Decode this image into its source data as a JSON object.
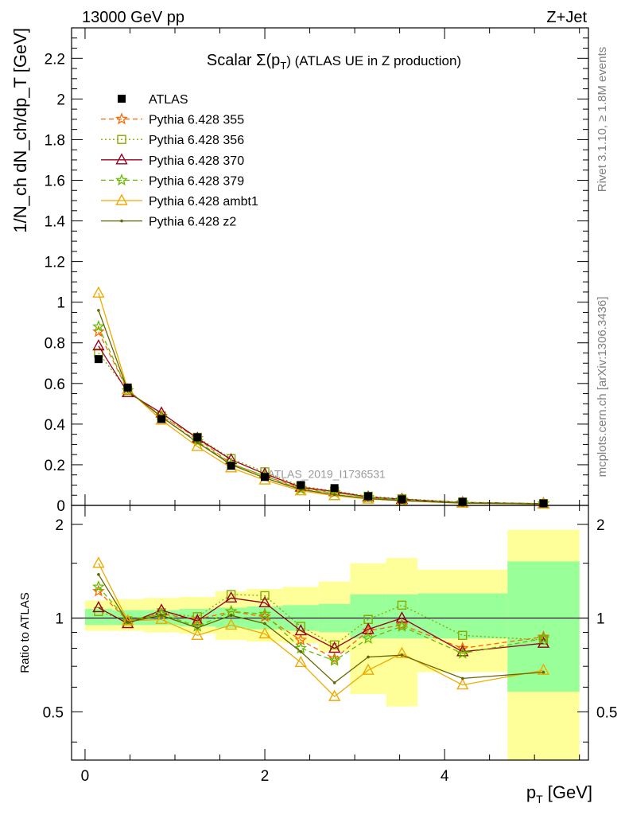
{
  "header": {
    "left": "13000 GeV pp",
    "right": "Z+Jet"
  },
  "side_labels": {
    "rivet": "Rivet 3.1.10, ≥ 1.8M events",
    "mcplots": "mcplots.cern.ch [arXiv:1306.3436]"
  },
  "watermark": "ATLAS_2019_I1736531",
  "chart_data": [
    {
      "type": "line",
      "title": "Scalar Σ(p_T) (ATLAS UE in Z production)",
      "title_main": "Scalar Σ(p",
      "title_sub": "T",
      "title_rest": ") (ATLAS UE in Z production)",
      "ylabel": "1/N_ch dN_ch/dp_T [GeV]",
      "xlim": [
        -0.15,
        5.6
      ],
      "ylim": [
        0,
        2.35
      ],
      "yticks": [
        0,
        0.2,
        0.4,
        0.6,
        0.8,
        1,
        1.2,
        1.4,
        1.6,
        1.8,
        2,
        2.2
      ],
      "ytick_labels": [
        "0",
        "0.2",
        "0.4",
        "0.6",
        "0.8",
        "1",
        "1.2",
        "1.4",
        "1.6",
        "1.8",
        "2",
        "2.2"
      ],
      "x": [
        0.15,
        0.475,
        0.85,
        1.25,
        1.625,
        2.0,
        2.4,
        2.775,
        3.15,
        3.525,
        4.2,
        5.1
      ],
      "reference": {
        "name": "ATLAS",
        "color": "#000000",
        "values": [
          0.72,
          0.58,
          0.425,
          0.335,
          0.195,
          0.14,
          0.1,
          0.085,
          0.045,
          0.03,
          0.018,
          0.01
        ]
      },
      "series": [
        {
          "name": "Pythia 6.428 355",
          "color": "#ff6600",
          "dash": "6,4",
          "marker": "star",
          "values": [
            0.855,
            0.565,
            0.44,
            0.33,
            0.205,
            0.145,
            0.085,
            0.063,
            0.041,
            0.025,
            0.015,
            0.0085
          ]
        },
        {
          "name": "Pythia 6.428 356",
          "color": "#88aa00",
          "dash": "2,3",
          "marker": "square",
          "values": [
            0.75,
            0.565,
            0.44,
            0.335,
            0.23,
            0.165,
            0.095,
            0.07,
            0.045,
            0.033,
            0.016,
            0.0085
          ]
        },
        {
          "name": "Pythia 6.428 370",
          "color": "#990022",
          "dash": "",
          "marker": "triangle",
          "values": [
            0.785,
            0.555,
            0.455,
            0.33,
            0.225,
            0.155,
            0.09,
            0.068,
            0.041,
            0.03,
            0.014,
            0.0083
          ]
        },
        {
          "name": "Pythia 6.428 379",
          "color": "#66bb00",
          "dash": "6,4",
          "marker": "star",
          "values": [
            0.88,
            0.565,
            0.435,
            0.315,
            0.205,
            0.145,
            0.08,
            0.062,
            0.039,
            0.028,
            0.014,
            0.0085
          ]
        },
        {
          "name": "Pythia 6.428 ambt1",
          "color": "#eeaa00",
          "dash": "",
          "marker": "triangle",
          "values": [
            1.045,
            0.57,
            0.42,
            0.29,
            0.185,
            0.125,
            0.072,
            0.048,
            0.031,
            0.023,
            0.011,
            0.0068
          ]
        },
        {
          "name": "Pythia 6.428 z2",
          "color": "#666600",
          "dash": "",
          "marker": "dot",
          "values": [
            0.96,
            0.565,
            0.435,
            0.31,
            0.2,
            0.135,
            0.078,
            0.053,
            0.034,
            0.023,
            0.0115,
            0.0068
          ]
        }
      ]
    },
    {
      "type": "line",
      "ylabel": "Ratio to ATLAS",
      "xlabel": "p_T [GeV]",
      "xlabel_main": "p",
      "xlabel_sub": "T",
      "xlabel_rest": " [GeV]",
      "xlim": [
        -0.15,
        5.6
      ],
      "ylim": [
        0.35,
        2.3
      ],
      "log_y": true,
      "xticks": [
        0,
        2,
        4
      ],
      "xtick_labels": [
        "0",
        "2",
        "4"
      ],
      "yticks": [
        0.5,
        1,
        2
      ],
      "ytick_labels": [
        "0.5",
        "1",
        "2"
      ],
      "x": [
        0.15,
        0.475,
        0.85,
        1.25,
        1.625,
        2.0,
        2.4,
        2.775,
        3.15,
        3.525,
        4.2,
        5.1
      ],
      "bins": [
        [
          0,
          0.3
        ],
        [
          0.3,
          0.65
        ],
        [
          0.65,
          1.05
        ],
        [
          1.05,
          1.45
        ],
        [
          1.45,
          1.8
        ],
        [
          1.8,
          2.2
        ],
        [
          2.2,
          2.6
        ],
        [
          2.6,
          2.95
        ],
        [
          2.95,
          3.35
        ],
        [
          3.35,
          3.7
        ],
        [
          3.7,
          4.7
        ],
        [
          4.7,
          5.5
        ]
      ],
      "band_stat": [
        [
          0.95,
          1.07
        ],
        [
          0.95,
          1.06
        ],
        [
          0.95,
          1.06
        ],
        [
          0.94,
          1.07
        ],
        [
          0.93,
          1.08
        ],
        [
          0.92,
          1.09
        ],
        [
          0.91,
          1.1
        ],
        [
          0.9,
          1.11
        ],
        [
          0.86,
          1.19
        ],
        [
          0.86,
          1.19
        ],
        [
          0.86,
          1.2
        ],
        [
          0.58,
          1.52
        ]
      ],
      "band_total": [
        [
          0.91,
          1.14
        ],
        [
          0.91,
          1.15
        ],
        [
          0.9,
          1.16
        ],
        [
          0.89,
          1.17
        ],
        [
          0.85,
          1.22
        ],
        [
          0.84,
          1.24
        ],
        [
          0.83,
          1.26
        ],
        [
          0.78,
          1.31
        ],
        [
          0.57,
          1.5
        ],
        [
          0.52,
          1.56
        ],
        [
          0.67,
          1.43
        ],
        [
          0.35,
          1.92
        ]
      ],
      "series": [
        {
          "name": "Pythia 6.428 355",
          "color": "#ff6600",
          "dash": "6,4",
          "marker": "star",
          "values": [
            1.22,
            0.98,
            1.03,
            0.99,
            1.05,
            1.01,
            0.85,
            0.74,
            0.91,
            0.95,
            0.8,
            0.87
          ]
        },
        {
          "name": "Pythia 6.428 356",
          "color": "#88aa00",
          "dash": "2,3",
          "marker": "square",
          "values": [
            1.05,
            0.98,
            1.04,
            1.01,
            1.19,
            1.18,
            0.94,
            0.82,
            0.99,
            1.1,
            0.88,
            0.85
          ]
        },
        {
          "name": "Pythia 6.428 370",
          "color": "#990022",
          "dash": "",
          "marker": "triangle",
          "values": [
            1.08,
            0.96,
            1.06,
            0.98,
            1.16,
            1.12,
            0.91,
            0.8,
            0.92,
            1.0,
            0.78,
            0.83
          ]
        },
        {
          "name": "Pythia 6.428 379",
          "color": "#66bb00",
          "dash": "6,4",
          "marker": "star",
          "values": [
            1.26,
            0.98,
            1.03,
            0.94,
            1.05,
            1.03,
            0.8,
            0.73,
            0.86,
            0.94,
            0.77,
            0.86
          ]
        },
        {
          "name": "Pythia 6.428 ambt1",
          "color": "#eeaa00",
          "dash": "",
          "marker": "triangle",
          "values": [
            1.5,
            0.98,
            0.99,
            0.88,
            0.95,
            0.89,
            0.72,
            0.56,
            0.68,
            0.77,
            0.61,
            0.68
          ]
        },
        {
          "name": "Pythia 6.428 z2",
          "color": "#666600",
          "dash": "",
          "marker": "dot",
          "values": [
            1.38,
            0.97,
            1.02,
            0.93,
            1.02,
            0.96,
            0.78,
            0.62,
            0.75,
            0.76,
            0.64,
            0.67
          ]
        }
      ]
    }
  ],
  "colors": {
    "band_stat": "#99ff99",
    "band_total": "#ffff99"
  }
}
